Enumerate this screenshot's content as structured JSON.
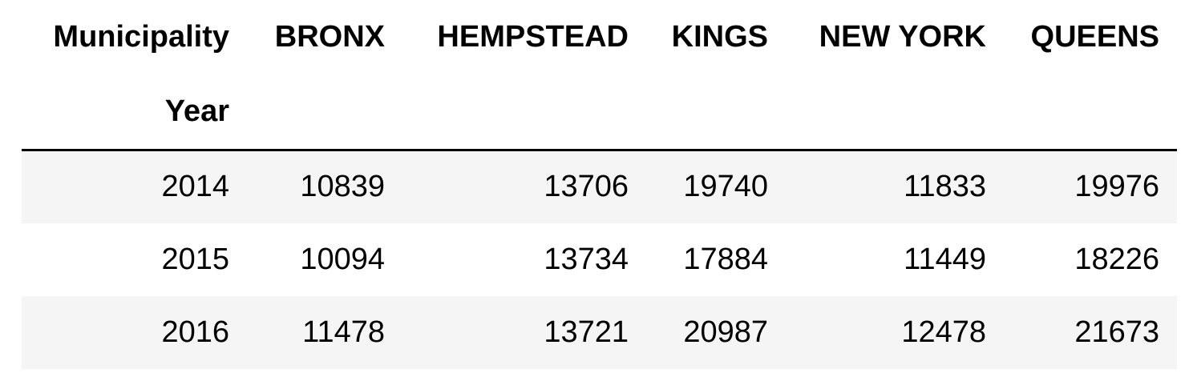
{
  "table": {
    "columns_label": "Municipality",
    "index_label": "Year",
    "columns": [
      "BRONX",
      "HEMPSTEAD",
      "KINGS",
      "NEW YORK",
      "QUEENS"
    ],
    "rows": [
      {
        "year": "2014",
        "values": [
          "10839",
          "13706",
          "19740",
          "11833",
          "19976"
        ]
      },
      {
        "year": "2015",
        "values": [
          "10094",
          "13734",
          "17884",
          "11449",
          "18226"
        ]
      },
      {
        "year": "2016",
        "values": [
          "11478",
          "13721",
          "20987",
          "12478",
          "21673"
        ]
      }
    ],
    "colors": {
      "stripe": "#f5f5f5",
      "rule": "#000000"
    }
  }
}
